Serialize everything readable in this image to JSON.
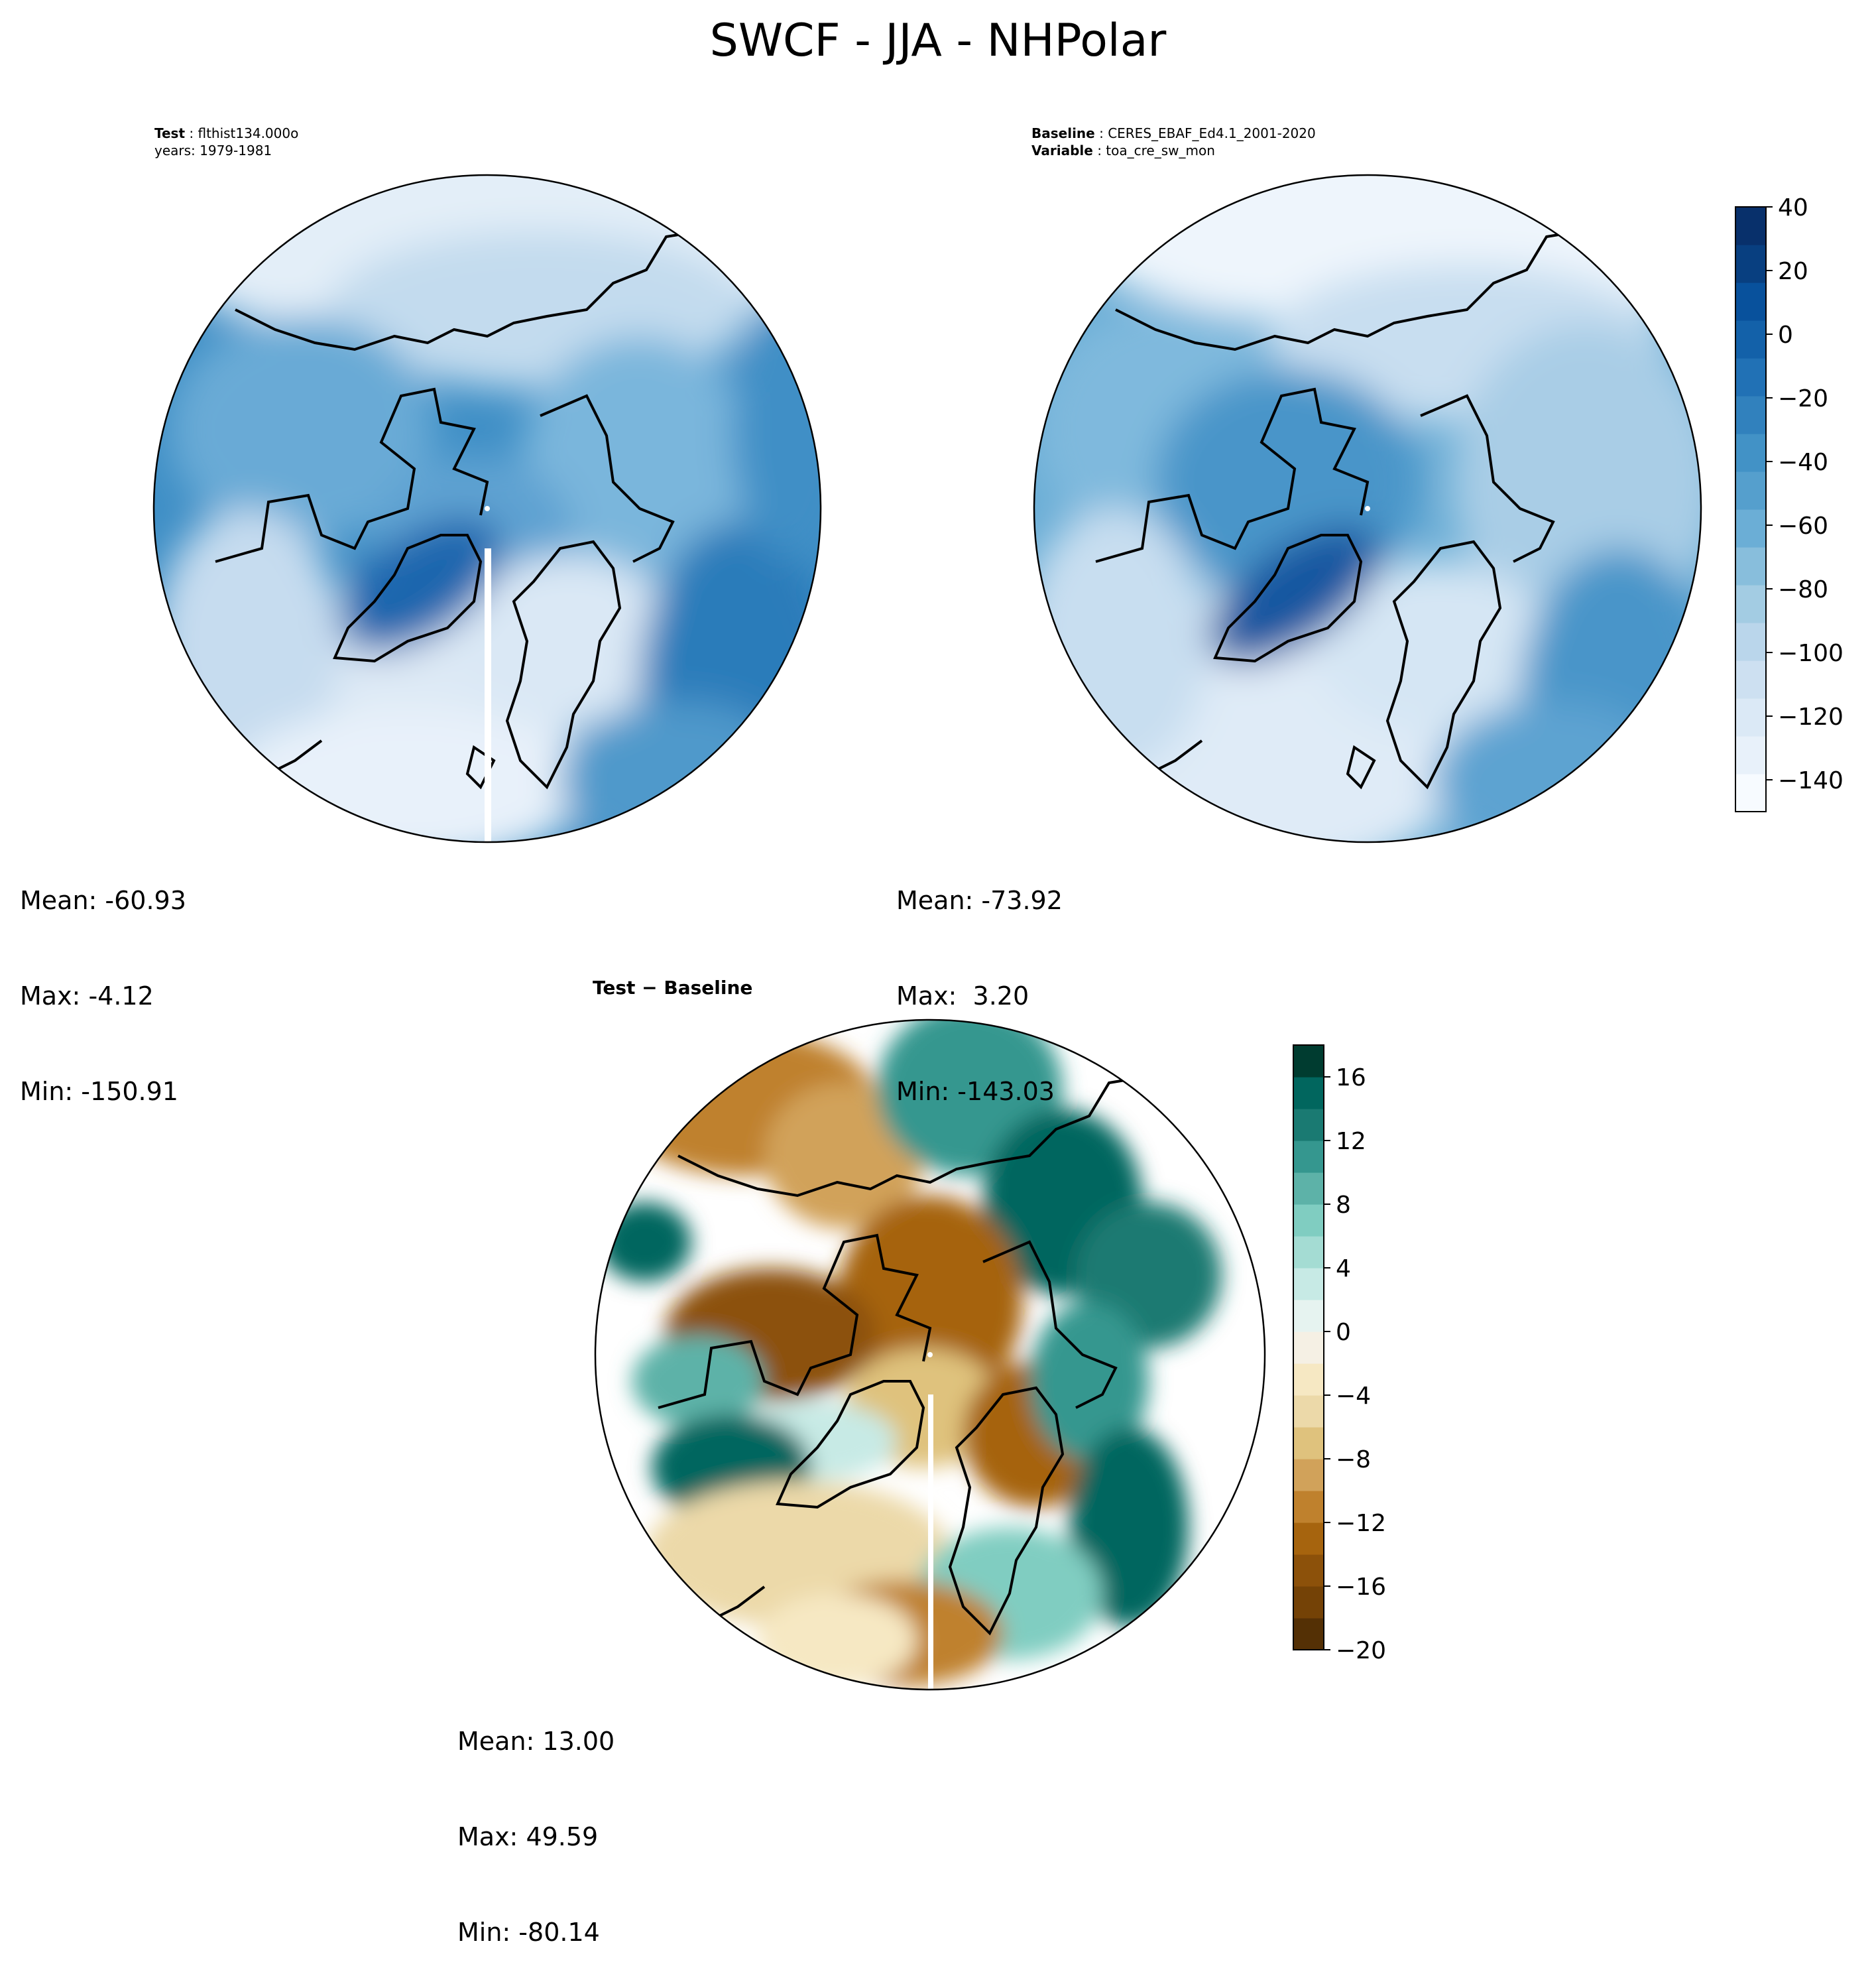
{
  "title": "SWCF - JJA - NHPolar",
  "panels": {
    "test": {
      "line1_label": "Test",
      "line1_value": "flthist134.000o",
      "line2": "years: 1979-1981",
      "stats": {
        "mean": "Mean: -60.93",
        "max": "Max: -4.12",
        "min": "Min: -150.91"
      }
    },
    "baseline": {
      "line1_label": "Baseline",
      "line1_value": "CERES_EBAF_Ed4.1_2001-2020",
      "line2_label": "Variable",
      "line2_value": "toa_cre_sw_mon",
      "stats": {
        "mean": "Mean: -73.92",
        "max": "Max:  3.20",
        "min": "Min: -143.03"
      }
    },
    "diff": {
      "title_a": "Test",
      "title_b": "Baseline",
      "stats": {
        "mean": "Mean: 13.00",
        "max": "Max: 49.59",
        "min": "Min: -80.14"
      }
    }
  },
  "colorbars": {
    "main": {
      "ticks": [
        "40",
        "20",
        "0",
        "−20",
        "−40",
        "−60",
        "−80",
        "−100",
        "−120",
        "−140"
      ],
      "tick_values": [
        40,
        20,
        0,
        -20,
        -40,
        -60,
        -80,
        -100,
        -120,
        -140
      ],
      "range": [
        -150,
        40
      ],
      "colormap": "Blues",
      "colors": [
        "#f7fbff",
        "#e8f1fa",
        "#dbe9f6",
        "#cde0f1",
        "#bad6eb",
        "#a3cce3",
        "#88bedc",
        "#6baed6",
        "#559fcd",
        "#4292c6",
        "#3181bd",
        "#2171b5",
        "#1361a9",
        "#08519c",
        "#083f80",
        "#08306b"
      ]
    },
    "diff": {
      "ticks": [
        "16",
        "12",
        "8",
        "4",
        "0",
        "−4",
        "−8",
        "−12",
        "−16",
        "−20"
      ],
      "tick_values": [
        16,
        12,
        8,
        4,
        0,
        -4,
        -8,
        -12,
        -16,
        -20
      ],
      "range": [
        -20,
        18
      ],
      "colormap": "BrBG",
      "colors": [
        "#543005",
        "#744206",
        "#8c510a",
        "#a6640e",
        "#bf812d",
        "#d1a25a",
        "#dfc27d",
        "#ecd9a9",
        "#f6e8c3",
        "#f5f0e4",
        "#e6f3f0",
        "#c7eae5",
        "#a4dcd3",
        "#80cdc1",
        "#5db2a8",
        "#35978f",
        "#1a7a72",
        "#01665e",
        "#003c30"
      ]
    }
  }
}
